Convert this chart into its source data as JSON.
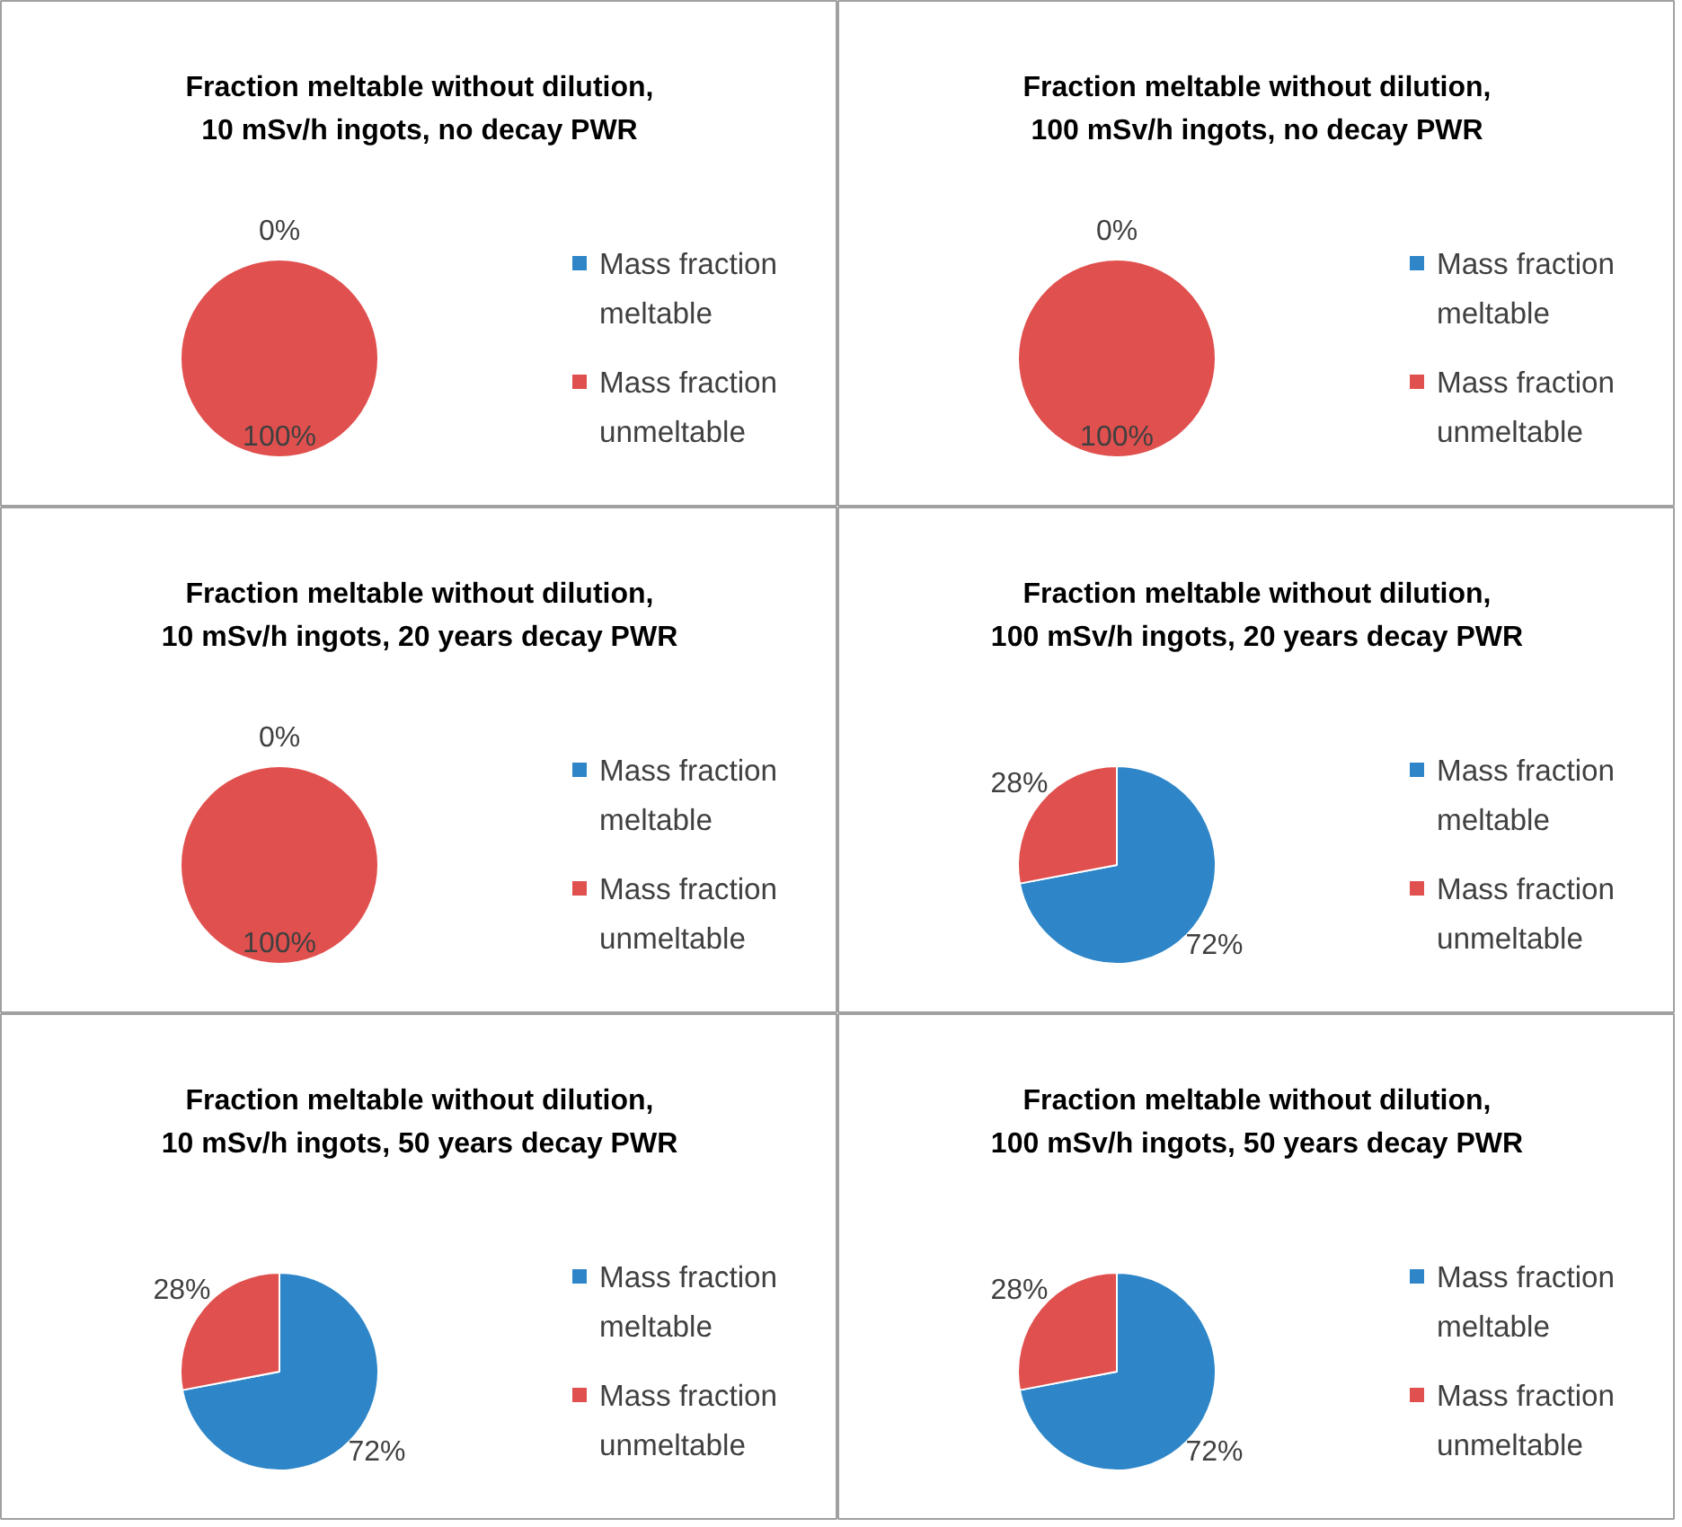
{
  "chart_data": [
    {
      "type": "pie",
      "title": "Fraction meltable without dilution, 10 mSv/h ingots, no decay PWR",
      "categories": [
        "Mass fraction meltable",
        "Mass fraction unmeltable"
      ],
      "values": [
        0,
        100
      ],
      "value_labels": [
        "0%",
        "100%"
      ],
      "colors": [
        "#2e86c8",
        "#e0504e"
      ],
      "legend": "right"
    },
    {
      "type": "pie",
      "title": "Fraction meltable without dilution, 100 mSv/h ingots, no decay PWR",
      "categories": [
        "Mass fraction meltable",
        "Mass fraction unmeltable"
      ],
      "values": [
        0,
        100
      ],
      "value_labels": [
        "0%",
        "100%"
      ],
      "colors": [
        "#2e86c8",
        "#e0504e"
      ],
      "legend": "right"
    },
    {
      "type": "pie",
      "title": "Fraction meltable without dilution, 10 mSv/h ingots, 20 years decay PWR",
      "categories": [
        "Mass fraction meltable",
        "Mass fraction unmeltable"
      ],
      "values": [
        0,
        100
      ],
      "value_labels": [
        "0%",
        "100%"
      ],
      "colors": [
        "#2e86c8",
        "#e0504e"
      ],
      "legend": "right"
    },
    {
      "type": "pie",
      "title": "Fraction meltable without dilution, 100 mSv/h ingots, 20 years decay PWR",
      "categories": [
        "Mass fraction meltable",
        "Mass fraction unmeltable"
      ],
      "values": [
        72,
        28
      ],
      "value_labels": [
        "72%",
        "28%"
      ],
      "colors": [
        "#2e86c8",
        "#e0504e"
      ],
      "legend": "right"
    },
    {
      "type": "pie",
      "title": "Fraction meltable without dilution, 10 mSv/h ingots, 50 years decay PWR",
      "categories": [
        "Mass fraction meltable",
        "Mass fraction unmeltable"
      ],
      "values": [
        72,
        28
      ],
      "value_labels": [
        "72%",
        "28%"
      ],
      "colors": [
        "#2e86c8",
        "#e0504e"
      ],
      "legend": "right"
    },
    {
      "type": "pie",
      "title": "Fraction meltable without dilution, 100 mSv/h ingots, 50 years decay PWR",
      "categories": [
        "Mass fraction meltable",
        "Mass fraction unmeltable"
      ],
      "values": [
        72,
        28
      ],
      "value_labels": [
        "72%",
        "28%"
      ],
      "colors": [
        "#2e86c8",
        "#e0504e"
      ],
      "legend": "right"
    }
  ]
}
